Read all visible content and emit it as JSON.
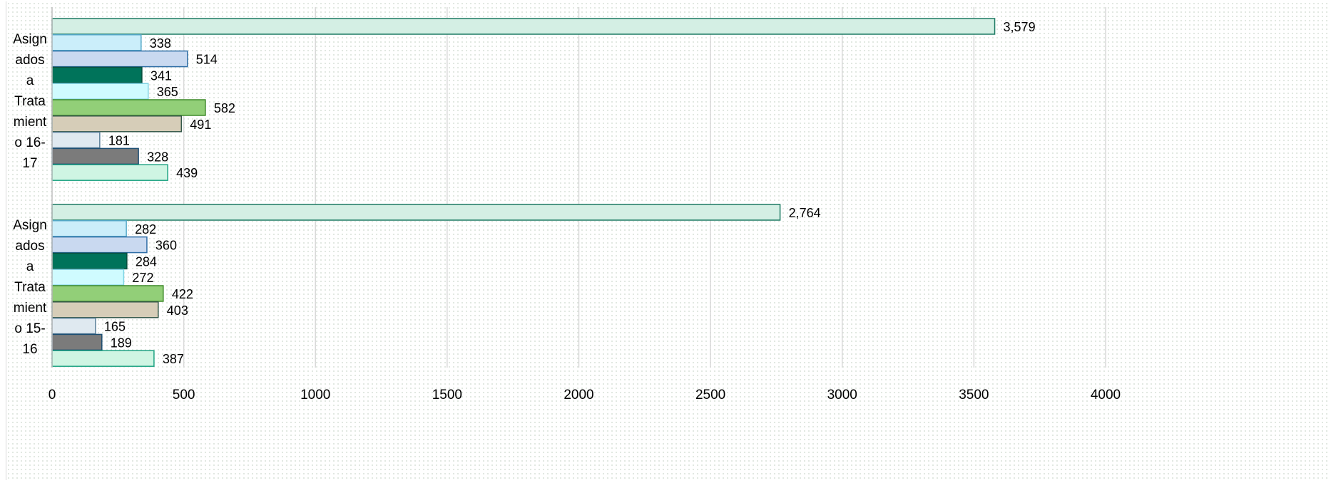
{
  "chart_data": {
    "type": "bar",
    "orientation": "horizontal",
    "title": "",
    "xlabel": "",
    "ylabel": "",
    "xlim": [
      0,
      4000
    ],
    "x_ticks": [
      "0",
      "500",
      "1000",
      "1500",
      "2000",
      "2500",
      "3000",
      "3500",
      "4000"
    ],
    "x_tick_values": [
      0,
      500,
      1000,
      1500,
      2000,
      2500,
      3000,
      3500,
      4000
    ],
    "grid": true,
    "legend": "none",
    "categories": [
      {
        "label": "Asignados a Tratamiento 16-17",
        "label_lines": [
          "Asign",
          "ados",
          "a",
          "Trata",
          "mient",
          "o 16-",
          "17"
        ]
      },
      {
        "label": "Asignados a Tratamiento 15-16",
        "label_lines": [
          "Asign",
          "ados",
          "a",
          "Trata",
          "mient",
          "o 15-",
          "16"
        ]
      }
    ],
    "series": [
      {
        "values": [
          3579,
          2764
        ],
        "labels": [
          "3,579",
          "2,764"
        ],
        "color": "#d4efe4",
        "stroke": "#1d7a63"
      },
      {
        "values": [
          338,
          282
        ],
        "labels": [
          "338",
          "282"
        ],
        "color": "#cbeefa",
        "stroke": "#55a9c9"
      },
      {
        "values": [
          514,
          360
        ],
        "labels": [
          "514",
          "360"
        ],
        "color": "#c9d9f0",
        "stroke": "#2f6ea6"
      },
      {
        "values": [
          341,
          284
        ],
        "labels": [
          "341",
          "284"
        ],
        "color": "#00735a",
        "stroke": "#0b4f3f"
      },
      {
        "values": [
          365,
          272
        ],
        "labels": [
          "365",
          "272"
        ],
        "color": "#cffbff",
        "stroke": "#7fd3e3"
      },
      {
        "values": [
          582,
          422
        ],
        "labels": [
          "582",
          "422"
        ],
        "color": "#92cf78",
        "stroke": "#3f8a2a"
      },
      {
        "values": [
          491,
          403
        ],
        "labels": [
          "491",
          "403"
        ],
        "color": "#d6cdb8",
        "stroke": "#35584a"
      },
      {
        "values": [
          181,
          165
        ],
        "labels": [
          "181",
          "165"
        ],
        "color": "#dfe9f0",
        "stroke": "#5a7f99"
      },
      {
        "values": [
          328,
          189
        ],
        "labels": [
          "328",
          "189"
        ],
        "color": "#7b7b7b",
        "stroke": "#1d4f73"
      },
      {
        "values": [
          439,
          387
        ],
        "labels": [
          "439",
          "387"
        ],
        "color": "#cff5e3",
        "stroke": "#1fa383"
      }
    ]
  }
}
